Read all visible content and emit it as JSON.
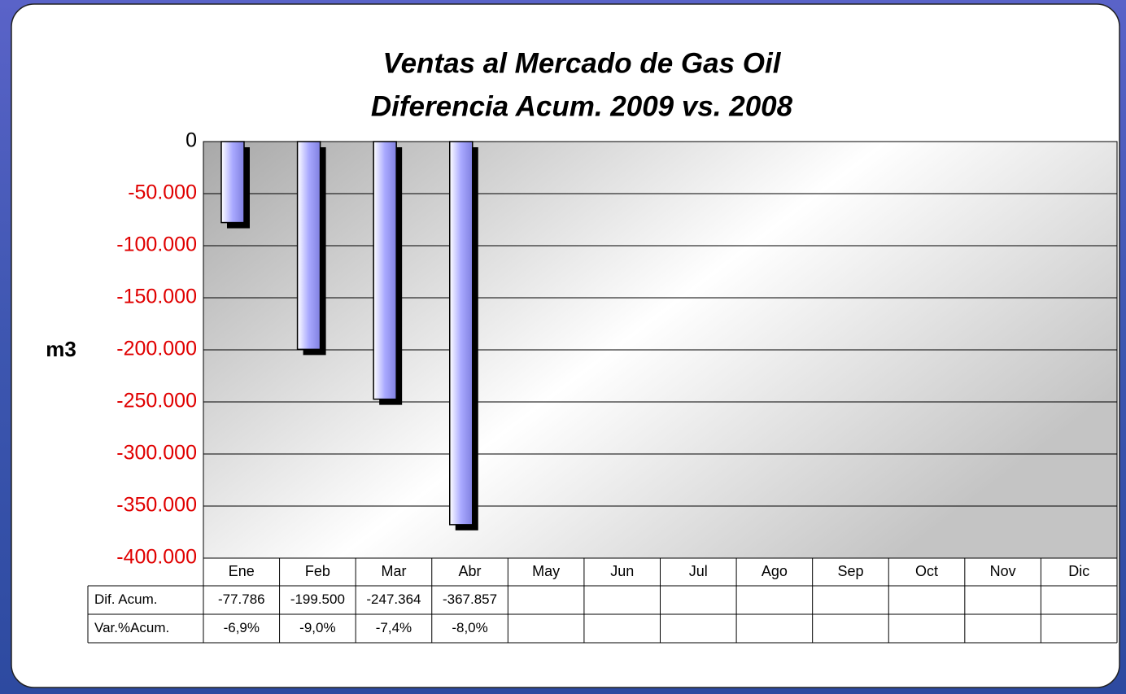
{
  "chart_data": {
    "type": "bar",
    "title": [
      "Ventas al Mercado de Gas Oil",
      "Diferencia Acum. 2009 vs. 2008"
    ],
    "y_label": "m3",
    "categories": [
      "Ene",
      "Feb",
      "Mar",
      "Abr",
      "May",
      "Jun",
      "Jul",
      "Ago",
      "Sep",
      "Oct",
      "Nov",
      "Dic"
    ],
    "values": [
      -77786,
      -199500,
      -247364,
      -367857,
      null,
      null,
      null,
      null,
      null,
      null,
      null,
      null
    ],
    "value_labels": [
      "-77.786",
      "-199.500",
      "-247.364",
      "-367.857",
      null,
      null,
      null,
      null,
      null,
      null,
      null,
      null
    ],
    "color": "#a9a9ff",
    "shadow_color": "#000000",
    "ylim": [
      -400000,
      0
    ],
    "yticks": [
      0,
      {
        "value": -50000,
        "label": "-50.000"
      },
      {
        "value": -100000,
        "label": "-100.000"
      },
      {
        "value": -150000,
        "label": "-150.000"
      },
      {
        "value": -200000,
        "label": "-200.000"
      },
      {
        "value": -250000,
        "label": "-250.000"
      },
      {
        "value": -300000,
        "label": "-300.000"
      },
      {
        "value": -350000,
        "label": "-350.000"
      },
      {
        "value": -400000,
        "label": "-400.000"
      }
    ],
    "grid": true,
    "data_table": {
      "value_row_name": "Dif. Acum.",
      "pct_row": {
        "name": "Var.%Acum.",
        "values": [
          -6.9,
          -9.0,
          -7.4,
          -8.0,
          null,
          null,
          null,
          null,
          null,
          null,
          null,
          null
        ],
        "value_labels": [
          "-6,9%",
          "-9,0%",
          "-7,4%",
          "-8,0%",
          null,
          null,
          null,
          null,
          null,
          null,
          null,
          null
        ]
      }
    }
  }
}
